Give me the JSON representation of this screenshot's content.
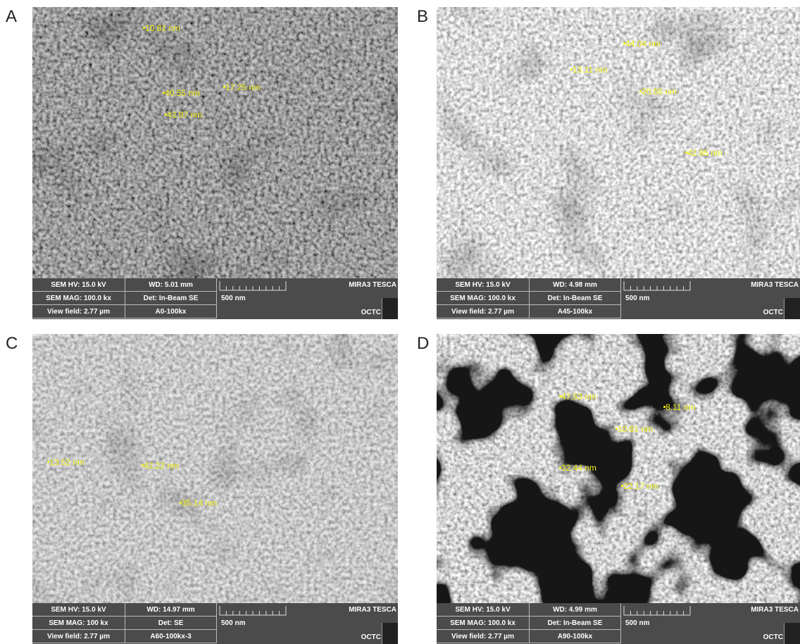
{
  "panels": [
    {
      "label": "A",
      "annotations": [
        "10.81 nm",
        "40.55 nm",
        "17.25 nm",
        "43.97 nm"
      ],
      "info": {
        "hv": "SEM HV: 15.0 kV",
        "wd": "WD: 5.01 mm",
        "brand": "MIRA3 TESCA",
        "mag": "SEM MAG: 100.0 kx",
        "det": "Det: In-Beam SE",
        "scale": "500 nm",
        "view": "View field: 2.77 µm",
        "name": "A0-100kx",
        "org": "OCTC"
      }
    },
    {
      "label": "B",
      "annotations": [
        "44.04 nm",
        "13.11 nm",
        "20.55 nm",
        "42.95 nm"
      ],
      "info": {
        "hv": "SEM HV: 15.0 kV",
        "wd": "WD: 4.98 mm",
        "brand": "MIRA3 TESCA",
        "mag": "SEM MAG: 100.0 kx",
        "det": "Det: In-Beam SE",
        "scale": "500 nm",
        "view": "View field: 2.77 µm",
        "name": "A45-100kx",
        "org": "OCTC"
      }
    },
    {
      "label": "C",
      "annotations": [
        "13.52 nm",
        "42.22 nm",
        "35.14 nm"
      ],
      "info": {
        "hv": "SEM HV: 15.0 kV",
        "wd": "WD: 14.97 mm",
        "brand": "MIRA3 TESCA",
        "mag": "SEM MAG: 100 kx",
        "det": "Det: SE",
        "scale": "500 nm",
        "view": "View field: 2.77 µm",
        "name": "A60-100kx-3",
        "org": "OCTC"
      }
    },
    {
      "label": "D",
      "annotations": [
        "47.53 nm",
        "8.11 nm",
        "10.81 nm",
        "32.44 nm",
        "22.17 nm"
      ],
      "info": {
        "hv": "SEM HV: 15.0 kV",
        "wd": "WD: 4.99 mm",
        "brand": "MIRA3 TESCA",
        "mag": "SEM MAG: 100.0 kx",
        "det": "Det: In-Beam SE",
        "scale": "500 nm",
        "view": "View field: 2.77 µm",
        "name": "A90-100kx",
        "org": "OCTC"
      }
    }
  ]
}
